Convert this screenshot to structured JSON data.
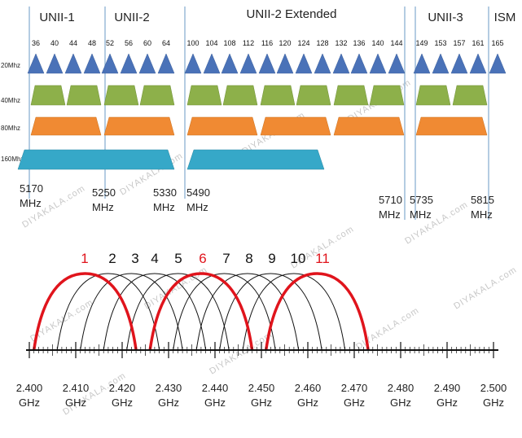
{
  "band_5ghz": {
    "bands": [
      {
        "name": "UNII-1"
      },
      {
        "name": "UNII-2"
      },
      {
        "name": "UNII-2 Extended"
      },
      {
        "name": "UNII-3"
      },
      {
        "name": "ISM"
      }
    ],
    "channels": [
      "36",
      "40",
      "44",
      "48",
      "52",
      "56",
      "60",
      "64",
      "100",
      "104",
      "108",
      "112",
      "116",
      "120",
      "124",
      "128",
      "132",
      "136",
      "140",
      "144",
      "149",
      "153",
      "157",
      "161",
      "165"
    ],
    "width_labels": [
      "20Mhz",
      "40Mhz",
      "80Mhz",
      "160Mhz"
    ],
    "freq_labels": [
      {
        "value": "5170",
        "unit": "MHz"
      },
      {
        "value": "5250",
        "unit": "MHz"
      },
      {
        "value": "5330",
        "unit": "MHz"
      },
      {
        "value": "5490",
        "unit": "MHz"
      },
      {
        "value": "5710",
        "unit": "MHz"
      },
      {
        "value": "5735",
        "unit": "MHz"
      },
      {
        "value": "5815",
        "unit": "MHz"
      }
    ],
    "colors": {
      "20": "#4a72b8",
      "40": "#8db04a",
      "80": "#f08a33",
      "160": "#36a8c8",
      "divider": "#9bbbd8"
    }
  },
  "band_24ghz": {
    "channels": [
      {
        "label": "1",
        "highlight": true
      },
      {
        "label": "2",
        "highlight": false
      },
      {
        "label": "3",
        "highlight": false
      },
      {
        "label": "4",
        "highlight": false
      },
      {
        "label": "5",
        "highlight": false
      },
      {
        "label": "6",
        "highlight": true
      },
      {
        "label": "7",
        "highlight": false
      },
      {
        "label": "8",
        "highlight": false
      },
      {
        "label": "9",
        "highlight": false
      },
      {
        "label": "10",
        "highlight": false
      },
      {
        "label": "11",
        "highlight": true
      }
    ],
    "axis_labels": [
      {
        "value": "2.400",
        "unit": "GHz"
      },
      {
        "value": "2.410",
        "unit": "GHz"
      },
      {
        "value": "2.420",
        "unit": "GHz"
      },
      {
        "value": "2.430",
        "unit": "GHz"
      },
      {
        "value": "2.440",
        "unit": "GHz"
      },
      {
        "value": "2.450",
        "unit": "GHz"
      },
      {
        "value": "2.460",
        "unit": "GHz"
      },
      {
        "value": "2.470",
        "unit": "GHz"
      },
      {
        "value": "2.480",
        "unit": "GHz"
      },
      {
        "value": "2.490",
        "unit": "GHz"
      },
      {
        "value": "2.500",
        "unit": "GHz"
      }
    ],
    "colors": {
      "highlight": "#e0141c",
      "normal": "#111111"
    }
  },
  "watermark_text": "DIYAKALA.com"
}
